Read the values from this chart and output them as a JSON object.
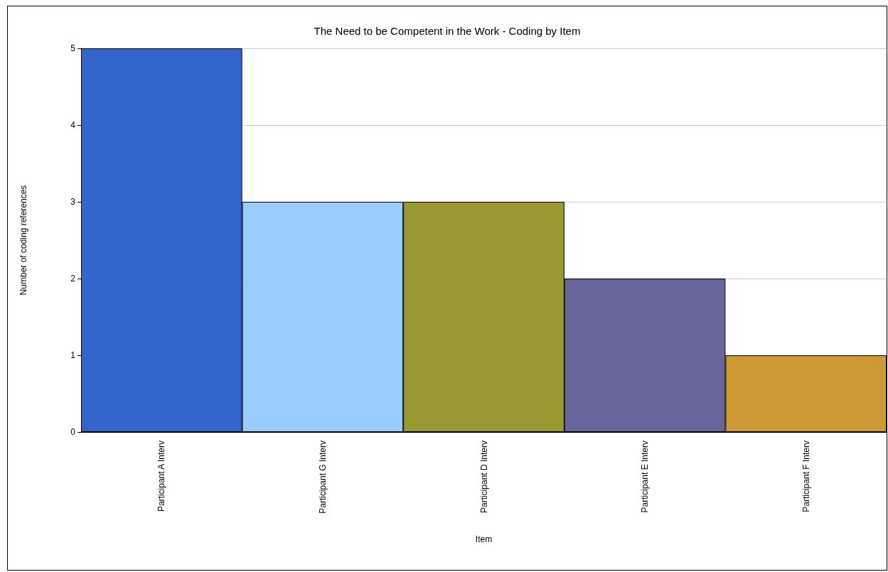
{
  "chart_data": {
    "type": "bar",
    "title": "The Need to be Competent in the Work - Coding by Item",
    "xlabel": "Item",
    "ylabel": "Number of coding references",
    "categories": [
      "Participant A Interv",
      "Participant G Interv",
      "Participant D Interv",
      "Participant E Interv",
      "Participant F Interv"
    ],
    "values": [
      5,
      3,
      3,
      2,
      1
    ],
    "colors": [
      "#3366cc",
      "#99ccff",
      "#999933",
      "#666699",
      "#cc9933"
    ],
    "ylim": [
      0,
      5
    ],
    "yticks": [
      0,
      1,
      2,
      3,
      4,
      5
    ],
    "grid": "y"
  }
}
